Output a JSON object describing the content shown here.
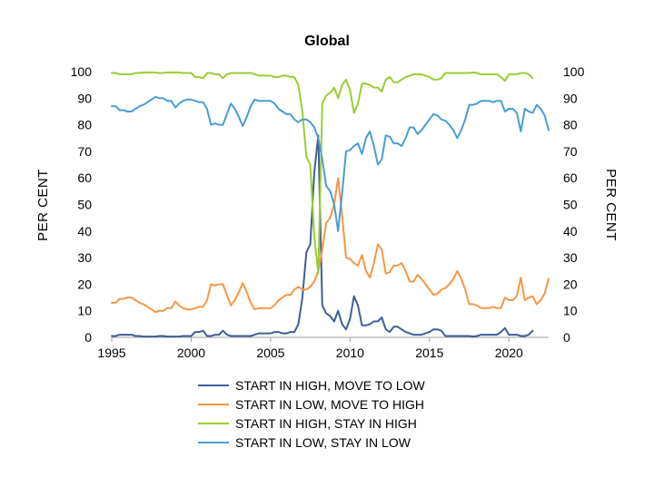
{
  "chart_data": {
    "type": "line",
    "title": "Global",
    "ylabel_left": "PER CENT",
    "ylabel_right": "PER CENT",
    "xlabel": "",
    "xlim": [
      1995,
      2022.5
    ],
    "ylim": [
      0,
      100
    ],
    "x_ticks": [
      1995,
      2000,
      2005,
      2010,
      2015,
      2020
    ],
    "y_ticks": [
      0,
      10,
      20,
      30,
      40,
      50,
      60,
      70,
      80,
      90,
      100
    ],
    "grid": false,
    "legend_position": "bottom",
    "x_start": 1995,
    "x_step": 0.25,
    "series": [
      {
        "name": "START IN HIGH, MOVE TO LOW",
        "color": "#3f5f96",
        "values": [
          0.5,
          0.5,
          1,
          1,
          1,
          1,
          0.5,
          0.5,
          0.3,
          0.3,
          0.3,
          0.3,
          0.5,
          0.5,
          0.3,
          0.3,
          0.3,
          0.3,
          0.5,
          0.5,
          0.5,
          2,
          2,
          2.5,
          0.5,
          0.5,
          1,
          1,
          2.5,
          1,
          0.5,
          0.5,
          0.5,
          0.5,
          0.5,
          0.5,
          1,
          1.5,
          1.5,
          1.5,
          1.5,
          2,
          2,
          1.5,
          1.5,
          2,
          2,
          5,
          15,
          32,
          35,
          62,
          76,
          12,
          9,
          8,
          6,
          10,
          5,
          3,
          7,
          15.5,
          12,
          4.5,
          4.5,
          5,
          6,
          6,
          7.5,
          3,
          2,
          4,
          4,
          3,
          2,
          1.5,
          1,
          1,
          1,
          1.5,
          2,
          3,
          3,
          2.5,
          0.5,
          0.5,
          0.5,
          0.5,
          0.5,
          0.5,
          0.5,
          0.3,
          0.5,
          1,
          1,
          1,
          1,
          1,
          2,
          3.5,
          1,
          1,
          1,
          0.5,
          0.5,
          1,
          2.5
        ]
      },
      {
        "name": "START IN LOW, MOVE TO HIGH",
        "color": "#f79646",
        "values": [
          13,
          13,
          14.5,
          14.5,
          15,
          15,
          14,
          13,
          12.5,
          11.5,
          10.5,
          9.5,
          10,
          10,
          11,
          11,
          13.5,
          12,
          11,
          10.5,
          10.5,
          11,
          11.5,
          11.5,
          14,
          20,
          19.5,
          20,
          20,
          16,
          12,
          14,
          17,
          20.5,
          17,
          13,
          10.5,
          11,
          11,
          11,
          11,
          12,
          14,
          15,
          16,
          16,
          18,
          19,
          18,
          18,
          19,
          21,
          25,
          33,
          43,
          45,
          50,
          60,
          46,
          30,
          29.5,
          28,
          27,
          31,
          25,
          22.5,
          28,
          35,
          33,
          24,
          24.5,
          27,
          27,
          28,
          25,
          21,
          21,
          23.5,
          22,
          20,
          18,
          16,
          16.5,
          18,
          18.5,
          20,
          22,
          25,
          22,
          18,
          12.5,
          12.5,
          12,
          11,
          11,
          11,
          11.5,
          11,
          11,
          15,
          14,
          14,
          15.5,
          22.5,
          14,
          15,
          15.5,
          12.5,
          14,
          16.5,
          22
        ]
      },
      {
        "name": "START IN HIGH, STAY IN HIGH",
        "color": "#9acd32",
        "values": [
          99.5,
          99.5,
          99,
          99,
          99,
          99,
          99.5,
          99.5,
          99.7,
          99.7,
          99.7,
          99.7,
          99.5,
          99.5,
          99.7,
          99.7,
          99.7,
          99.7,
          99.5,
          99.5,
          99.5,
          98,
          98,
          97.5,
          99.5,
          99.5,
          99,
          99,
          97.5,
          99,
          99.5,
          99.5,
          99.5,
          99.5,
          99.5,
          99.5,
          99,
          98.5,
          98.5,
          98.5,
          98.5,
          98,
          98,
          98.5,
          98.5,
          98,
          98,
          95,
          85,
          68,
          65,
          38,
          24,
          88,
          91,
          92,
          94,
          90,
          95,
          97,
          93,
          84.5,
          88,
          95.5,
          95.5,
          95,
          94,
          94,
          92.5,
          97,
          98,
          96,
          96,
          97,
          98,
          98.5,
          99,
          99,
          99,
          98.5,
          98,
          97,
          97,
          97.5,
          99.5,
          99.5,
          99.5,
          99.5,
          99.5,
          99.5,
          99.5,
          99.7,
          99.5,
          99,
          99,
          99,
          99,
          99,
          98,
          96.5,
          99,
          99,
          99,
          99.5,
          99.5,
          99,
          97.5
        ]
      },
      {
        "name": "START IN LOW, STAY IN LOW",
        "color": "#4b9cd3",
        "values": [
          87,
          87,
          85.5,
          85.5,
          85,
          85,
          86,
          87,
          87.5,
          88.5,
          89.5,
          90.5,
          90,
          90,
          89,
          89,
          86.5,
          88,
          89,
          89.5,
          89.5,
          89,
          88.5,
          88.5,
          86,
          80,
          80.5,
          80,
          80,
          84,
          88,
          86,
          83,
          79.5,
          83,
          87,
          89.5,
          89,
          89,
          89,
          89,
          88,
          86,
          85,
          84,
          84,
          82,
          81,
          82,
          82,
          81,
          79,
          75,
          67,
          57,
          55,
          50,
          40,
          54,
          70,
          70.5,
          72,
          73,
          69,
          75,
          77.5,
          72,
          65,
          67,
          76,
          75.5,
          73,
          73,
          72,
          75,
          79,
          79,
          76.5,
          78,
          80,
          82,
          84,
          83.5,
          82,
          81.5,
          80,
          78,
          75,
          78,
          82,
          87.5,
          87.5,
          88,
          89,
          89,
          89,
          88.5,
          89,
          89,
          85,
          86,
          86,
          84.5,
          77.5,
          86,
          85,
          84.5,
          87.5,
          86,
          83.5,
          78
        ]
      }
    ]
  }
}
